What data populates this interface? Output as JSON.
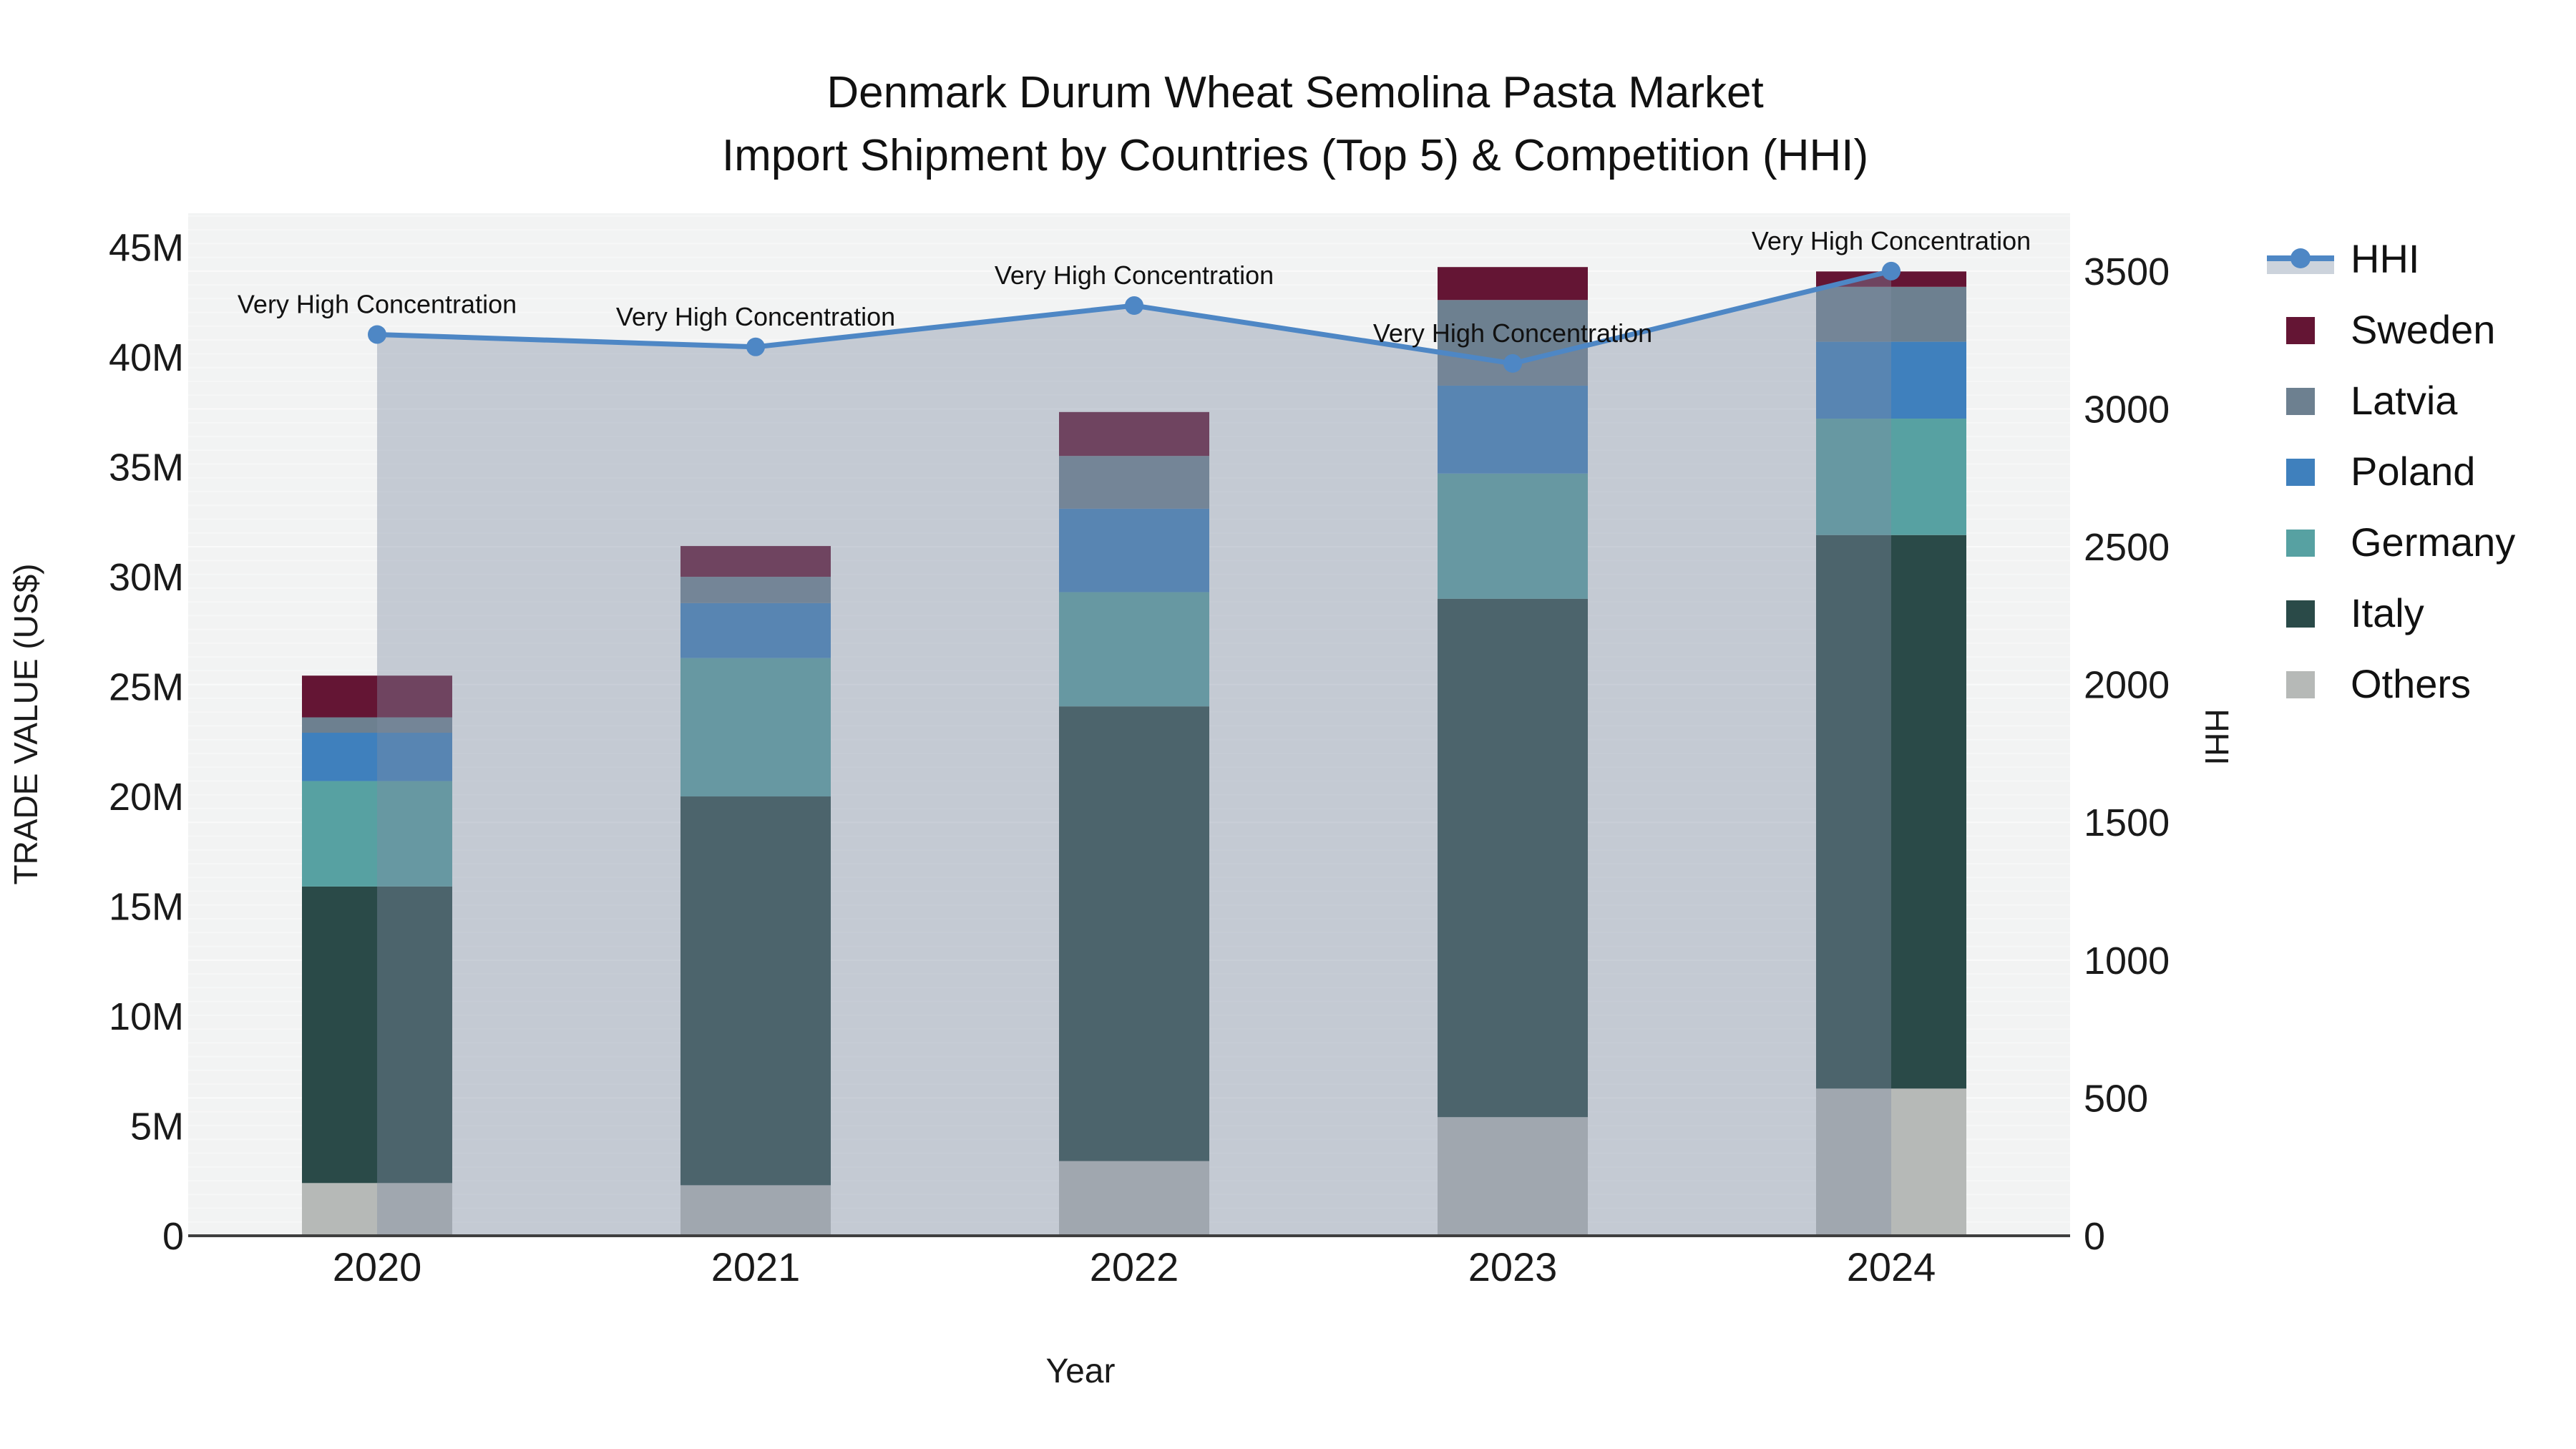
{
  "title": {
    "line1": "Denmark Durum Wheat Semolina Pasta Market",
    "line2": "Import Shipment by Countries (Top 5) & Competition (HHI)"
  },
  "axes": {
    "left": {
      "title": "TRADE VALUE (US$)",
      "tick_labels": [
        "0",
        "5M",
        "10M",
        "15M",
        "20M",
        "25M",
        "30M",
        "35M",
        "40M",
        "45M"
      ],
      "tick_values": [
        0,
        5,
        10,
        15,
        20,
        25,
        30,
        35,
        40,
        45
      ],
      "range": [
        0,
        46.55
      ]
    },
    "right": {
      "title": "HHI",
      "tick_labels": [
        "0",
        "500",
        "1000",
        "1500",
        "2000",
        "2500",
        "3000",
        "3500"
      ],
      "tick_values": [
        0,
        500,
        1000,
        1500,
        2000,
        2500,
        3000,
        3500
      ],
      "range": [
        0,
        3710
      ]
    },
    "x": {
      "title": "Year"
    }
  },
  "annotation_label": "Very High Concentration",
  "legend": {
    "items": [
      {
        "label": "HHI",
        "kind": "line",
        "color": "#4e87c5",
        "band": "#ccd3dc"
      },
      {
        "label": "Sweden",
        "kind": "swatch",
        "color": "#641534"
      },
      {
        "label": "Latvia",
        "kind": "swatch",
        "color": "#6d8090"
      },
      {
        "label": "Poland",
        "kind": "swatch",
        "color": "#3f80bd"
      },
      {
        "label": "Germany",
        "kind": "swatch",
        "color": "#57a1a2"
      },
      {
        "label": "Italy",
        "kind": "swatch",
        "color": "#2a4a48"
      },
      {
        "label": "Others",
        "kind": "swatch",
        "color": "#b6b9b7"
      }
    ]
  },
  "colors": {
    "plot_bg": "#f2f3f3",
    "grid": "#ffffff",
    "axis_line": "#3f3f3f",
    "hhi_line": "#4e87c5",
    "area_fill": "#7f8ca3",
    "area_opacity": 0.4,
    "text": "#1a1a1a"
  },
  "chart_data": {
    "type": "bar",
    "subtype": "stacked-bar-with-line",
    "title": "Denmark Durum Wheat Semolina Pasta Market — Import Shipment by Countries (Top 5) & Competition (HHI)",
    "xlabel": "Year",
    "ylabel_left": "TRADE VALUE (US$)",
    "ylabel_right": "HHI",
    "categories": [
      "2020",
      "2021",
      "2022",
      "2023",
      "2024"
    ],
    "units": "million US$",
    "ylim_left": [
      0,
      46.55
    ],
    "ylim_right": [
      0,
      3710
    ],
    "grid": true,
    "legend_position": "right",
    "series": [
      {
        "name": "Others",
        "color": "#b6b9b7",
        "values": [
          2.4,
          2.3,
          3.4,
          5.4,
          6.7
        ]
      },
      {
        "name": "Italy",
        "color": "#2a4a48",
        "values": [
          13.5,
          17.7,
          20.7,
          23.6,
          25.2
        ]
      },
      {
        "name": "Germany",
        "color": "#57a1a2",
        "values": [
          4.8,
          6.3,
          5.2,
          5.7,
          5.3
        ]
      },
      {
        "name": "Poland",
        "color": "#3f80bd",
        "values": [
          2.2,
          2.5,
          3.8,
          4.0,
          3.5
        ]
      },
      {
        "name": "Latvia",
        "color": "#6d8090",
        "values": [
          0.7,
          1.2,
          2.4,
          3.9,
          2.5
        ]
      },
      {
        "name": "Sweden",
        "color": "#641534",
        "values": [
          1.9,
          1.4,
          2.0,
          1.5,
          0.7
        ]
      }
    ],
    "bar_totals": [
      25.5,
      31.4,
      37.5,
      44.1,
      43.9
    ],
    "line_series": {
      "name": "HHI",
      "axis": "right",
      "color": "#4e87c5",
      "values": [
        3270,
        3225,
        3375,
        3165,
        3500
      ],
      "area_fill_under_line": true,
      "point_annotations": [
        "Very High Concentration",
        "Very High Concentration",
        "Very High Concentration",
        "Very High Concentration",
        "Very High Concentration"
      ]
    }
  }
}
